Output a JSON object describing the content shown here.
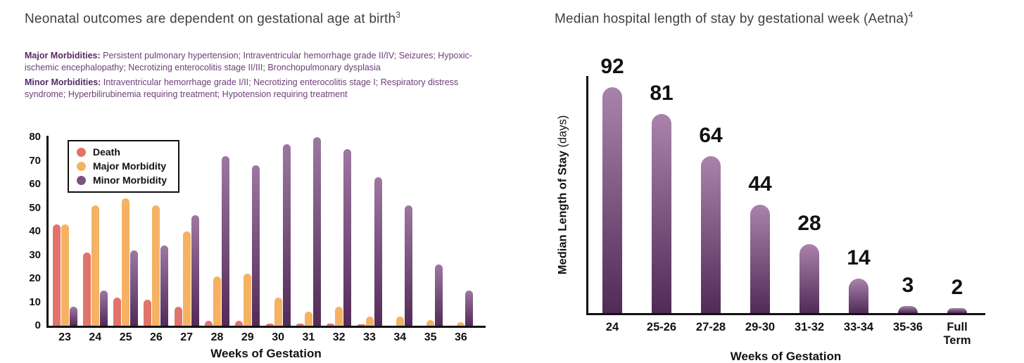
{
  "left_panel": {
    "title": "Neonatal outcomes are dependent on gestational age at birth",
    "title_sup": "3",
    "major_label": "Major Morbidities:",
    "major_text": " Persistent pulmonary hypertension; Intraventricular hemorrhage grade II/IV; Seizures; Hypoxic-ischemic encephalopathy; Necrotizing enterocolitis stage II/III; Bronchopulmonary dysplasia",
    "minor_label": "Minor Morbidities:",
    "minor_text": " Intraventricular hemorrhage grade I/II; Necrotizing enterocolitis stage I; Respiratory distress syndrome; Hyperbilirubinemia requiring treatment; Hypotension requiring treatment"
  },
  "right_panel": {
    "title": "Median hospital length of stay by gestational week (Aetna)",
    "title_sup": "4"
  },
  "colors": {
    "title_text": "#3f3f3f",
    "morbidity_text": "#6e3d7a",
    "morbidity_bold": "#562a64",
    "axis": "#111111",
    "label_text": "#111111"
  },
  "chart_data": [
    {
      "type": "bar",
      "categories": [
        "23",
        "24",
        "25",
        "26",
        "27",
        "28",
        "29",
        "30",
        "31",
        "32",
        "33",
        "34",
        "35",
        "36"
      ],
      "series": [
        {
          "name": "Death",
          "color": "#e1746a",
          "values": [
            43,
            31,
            12,
            11,
            8,
            2,
            2,
            1,
            1,
            1,
            0.5,
            0,
            0,
            0
          ]
        },
        {
          "name": "Major Morbidity",
          "color": "#f5b263",
          "values": [
            43,
            51,
            54,
            51,
            40,
            21,
            22,
            12,
            6,
            8,
            4,
            4,
            2.5,
            1.5
          ]
        },
        {
          "name": "Minor Morbidity",
          "color": "#7d5181",
          "gradient": [
            "#9d77a2",
            "#532b59"
          ],
          "values": [
            8,
            15,
            32,
            34,
            47,
            72,
            68,
            77,
            80,
            75,
            63,
            51,
            26,
            15
          ]
        }
      ],
      "xlabel": "Weeks of Gestation",
      "ylim": [
        0,
        80
      ],
      "yticks": [
        0,
        10,
        20,
        30,
        40,
        50,
        60,
        70,
        80
      ],
      "legend_position": "top-left",
      "grid": false
    },
    {
      "type": "bar",
      "categories": [
        "24",
        "25-26",
        "27-28",
        "29-30",
        "31-32",
        "33-34",
        "35-36",
        "Full\nTerm"
      ],
      "values": [
        92,
        81,
        64,
        44,
        28,
        14,
        3,
        2
      ],
      "bar_gradient": [
        "#a983ab",
        "#502b56"
      ],
      "xlabel": "Weeks of Gestation",
      "ylabel_bold": "Median Length of Stay",
      "ylabel_units": "(days)",
      "ylim": [
        0,
        100
      ],
      "data_labels": true,
      "legend_position": "none",
      "grid": false
    }
  ]
}
